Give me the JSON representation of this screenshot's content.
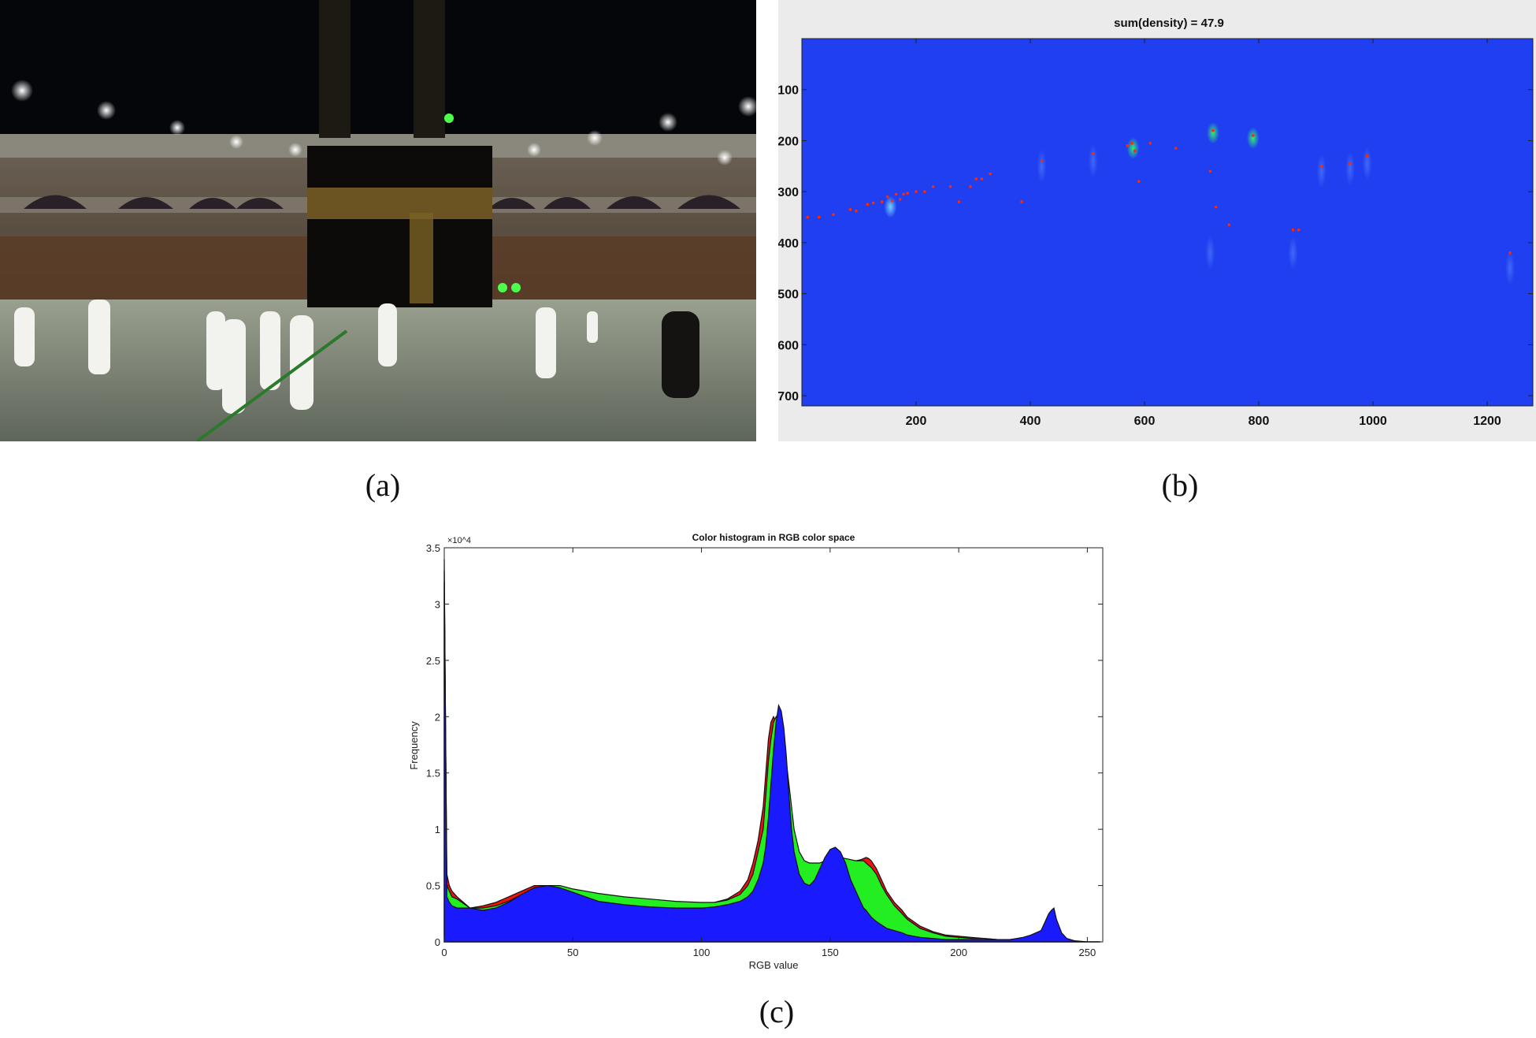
{
  "captions": {
    "a": "(a)",
    "b": "(b)",
    "c": "(c)"
  },
  "colors": {
    "density_bg": "#1f3ff0",
    "point": "#ff2a00",
    "red": "#ee1111",
    "green": "#22ee22",
    "blue": "#1a1aff"
  },
  "chart_data": [
    {
      "id": "b",
      "type": "heatmap",
      "title": "sum(density) = 47.9",
      "xlabel": "",
      "ylabel": "",
      "xlim": [
        0,
        1280
      ],
      "ylim": [
        720,
        0
      ],
      "xticks": [
        200,
        400,
        600,
        800,
        1000,
        1200
      ],
      "yticks": [
        100,
        200,
        300,
        400,
        500,
        600,
        700
      ],
      "points": [
        [
          10,
          350
        ],
        [
          30,
          350
        ],
        [
          55,
          345
        ],
        [
          85,
          335
        ],
        [
          95,
          338
        ],
        [
          115,
          325
        ],
        [
          125,
          322
        ],
        [
          140,
          320
        ],
        [
          150,
          310
        ],
        [
          158,
          318
        ],
        [
          165,
          305
        ],
        [
          172,
          315
        ],
        [
          178,
          305
        ],
        [
          185,
          303
        ],
        [
          200,
          300
        ],
        [
          215,
          300
        ],
        [
          230,
          290
        ],
        [
          260,
          290
        ],
        [
          275,
          320
        ],
        [
          295,
          290
        ],
        [
          305,
          275
        ],
        [
          315,
          275
        ],
        [
          330,
          265
        ],
        [
          385,
          320
        ],
        [
          420,
          240
        ],
        [
          510,
          225
        ],
        [
          570,
          210
        ],
        [
          578,
          205
        ],
        [
          583,
          220
        ],
        [
          590,
          280
        ],
        [
          610,
          205
        ],
        [
          655,
          215
        ],
        [
          715,
          260
        ],
        [
          720,
          180
        ],
        [
          725,
          330
        ],
        [
          748,
          365
        ],
        [
          790,
          190
        ],
        [
          860,
          375
        ],
        [
          870,
          375
        ],
        [
          910,
          250
        ],
        [
          960,
          245
        ],
        [
          990,
          230
        ],
        [
          1240,
          420
        ]
      ],
      "glows": [
        [
          155,
          330,
          "strong"
        ],
        [
          580,
          215,
          "green"
        ],
        [
          720,
          185,
          "green"
        ],
        [
          790,
          195,
          "green"
        ],
        [
          420,
          250,
          "faint"
        ],
        [
          510,
          240,
          "faint"
        ],
        [
          910,
          260,
          "faint"
        ],
        [
          960,
          255,
          "faint"
        ],
        [
          990,
          245,
          "faint"
        ],
        [
          715,
          420,
          "faint"
        ],
        [
          860,
          420,
          "faint"
        ],
        [
          1240,
          450,
          "faint"
        ]
      ]
    },
    {
      "id": "c",
      "type": "area",
      "title": "Color histogram in RGB color space",
      "xlabel": "RGB value",
      "ylabel": "Frequency",
      "y_multiplier": "×10^4",
      "xlim": [
        0,
        256
      ],
      "ylim": [
        0,
        3.5
      ],
      "xticks": [
        0,
        50,
        100,
        150,
        200,
        250
      ],
      "yticks": [
        0,
        0.5,
        1,
        1.5,
        2,
        2.5,
        3,
        3.5
      ],
      "series": [
        {
          "name": "R",
          "color": "#ee1111",
          "x": [
            0,
            1,
            2,
            3,
            5,
            10,
            15,
            20,
            25,
            30,
            35,
            40,
            45,
            50,
            55,
            60,
            70,
            80,
            90,
            100,
            105,
            110,
            115,
            118,
            120,
            122,
            124,
            125,
            126,
            127,
            128,
            129,
            130,
            131,
            132,
            133,
            134,
            135,
            136,
            138,
            140,
            142,
            144,
            146,
            148,
            150,
            152,
            154,
            156,
            158,
            160,
            162,
            163,
            164,
            165,
            166,
            168,
            170,
            172,
            175,
            178,
            180,
            185,
            190,
            195,
            200,
            205,
            210,
            215,
            220,
            225,
            228,
            230,
            232,
            233,
            234,
            235,
            236,
            237,
            238,
            240,
            242,
            245,
            250,
            255
          ],
          "y": [
            3.3,
            0.6,
            0.5,
            0.45,
            0.4,
            0.3,
            0.32,
            0.35,
            0.4,
            0.45,
            0.5,
            0.5,
            0.48,
            0.45,
            0.42,
            0.4,
            0.38,
            0.36,
            0.35,
            0.34,
            0.35,
            0.38,
            0.45,
            0.55,
            0.7,
            0.9,
            1.2,
            1.5,
            1.8,
            1.95,
            2.0,
            1.95,
            1.9,
            1.8,
            1.7,
            1.5,
            1.3,
            1.1,
            0.9,
            0.75,
            0.7,
            0.7,
            0.68,
            0.68,
            0.7,
            0.72,
            0.73,
            0.73,
            0.72,
            0.72,
            0.72,
            0.73,
            0.74,
            0.75,
            0.74,
            0.72,
            0.65,
            0.55,
            0.45,
            0.35,
            0.28,
            0.22,
            0.14,
            0.09,
            0.06,
            0.05,
            0.04,
            0.03,
            0.02,
            0.02,
            0.03,
            0.04,
            0.05,
            0.06,
            0.08,
            0.1,
            0.12,
            0.14,
            0.1,
            0.05,
            0.02,
            0.01,
            0.0,
            0.0,
            0.0
          ]
        },
        {
          "name": "G",
          "color": "#22ee22",
          "x": [
            0,
            1,
            2,
            3,
            5,
            10,
            15,
            20,
            25,
            30,
            35,
            40,
            45,
            50,
            55,
            60,
            70,
            80,
            90,
            100,
            105,
            110,
            115,
            118,
            120,
            122,
            124,
            125,
            126,
            127,
            128,
            129,
            130,
            131,
            132,
            133,
            134,
            135,
            136,
            138,
            140,
            142,
            144,
            146,
            148,
            150,
            152,
            154,
            156,
            158,
            160,
            162,
            163,
            164,
            165,
            166,
            168,
            170,
            172,
            175,
            178,
            180,
            185,
            190,
            195,
            200,
            205,
            210,
            215,
            220,
            225,
            228,
            230,
            232,
            233,
            234,
            235,
            236,
            237,
            238,
            240,
            242,
            245,
            250,
            255
          ],
          "y": [
            3.2,
            0.5,
            0.45,
            0.4,
            0.38,
            0.3,
            0.3,
            0.32,
            0.36,
            0.42,
            0.48,
            0.5,
            0.5,
            0.47,
            0.45,
            0.43,
            0.4,
            0.38,
            0.36,
            0.35,
            0.35,
            0.37,
            0.42,
            0.5,
            0.6,
            0.8,
            1.0,
            1.3,
            1.6,
            1.8,
            1.95,
            2.0,
            1.95,
            1.85,
            1.75,
            1.6,
            1.4,
            1.2,
            1.0,
            0.8,
            0.72,
            0.7,
            0.7,
            0.7,
            0.72,
            0.74,
            0.75,
            0.75,
            0.74,
            0.73,
            0.72,
            0.72,
            0.72,
            0.7,
            0.68,
            0.66,
            0.6,
            0.5,
            0.42,
            0.32,
            0.25,
            0.2,
            0.12,
            0.08,
            0.05,
            0.04,
            0.03,
            0.03,
            0.02,
            0.02,
            0.03,
            0.05,
            0.07,
            0.1,
            0.12,
            0.15,
            0.18,
            0.2,
            0.15,
            0.08,
            0.03,
            0.01,
            0.0,
            0.0,
            0.0
          ]
        },
        {
          "name": "B",
          "color": "#1a1aff",
          "x": [
            0,
            1,
            2,
            3,
            5,
            10,
            15,
            20,
            25,
            30,
            35,
            40,
            45,
            50,
            55,
            60,
            70,
            80,
            90,
            100,
            105,
            110,
            115,
            118,
            120,
            122,
            124,
            125,
            126,
            127,
            128,
            129,
            130,
            131,
            132,
            133,
            134,
            135,
            136,
            138,
            140,
            142,
            144,
            146,
            148,
            150,
            152,
            154,
            156,
            158,
            160,
            162,
            163,
            164,
            165,
            166,
            168,
            170,
            172,
            175,
            178,
            180,
            185,
            190,
            195,
            200,
            205,
            210,
            215,
            220,
            225,
            228,
            230,
            232,
            233,
            234,
            235,
            236,
            237,
            238,
            240,
            242,
            245,
            250,
            255
          ],
          "y": [
            3.4,
            0.4,
            0.35,
            0.32,
            0.3,
            0.3,
            0.28,
            0.3,
            0.35,
            0.42,
            0.48,
            0.5,
            0.48,
            0.44,
            0.4,
            0.36,
            0.33,
            0.31,
            0.3,
            0.3,
            0.31,
            0.33,
            0.36,
            0.4,
            0.45,
            0.55,
            0.7,
            0.85,
            1.1,
            1.4,
            1.7,
            1.95,
            2.1,
            2.05,
            1.9,
            1.65,
            1.3,
            1.0,
            0.8,
            0.6,
            0.52,
            0.5,
            0.55,
            0.65,
            0.75,
            0.82,
            0.84,
            0.8,
            0.7,
            0.55,
            0.45,
            0.35,
            0.3,
            0.28,
            0.25,
            0.22,
            0.18,
            0.15,
            0.12,
            0.1,
            0.08,
            0.06,
            0.04,
            0.03,
            0.02,
            0.02,
            0.02,
            0.02,
            0.02,
            0.02,
            0.04,
            0.06,
            0.08,
            0.1,
            0.15,
            0.2,
            0.25,
            0.28,
            0.3,
            0.2,
            0.08,
            0.03,
            0.01,
            0.0,
            0.0
          ]
        }
      ]
    }
  ]
}
